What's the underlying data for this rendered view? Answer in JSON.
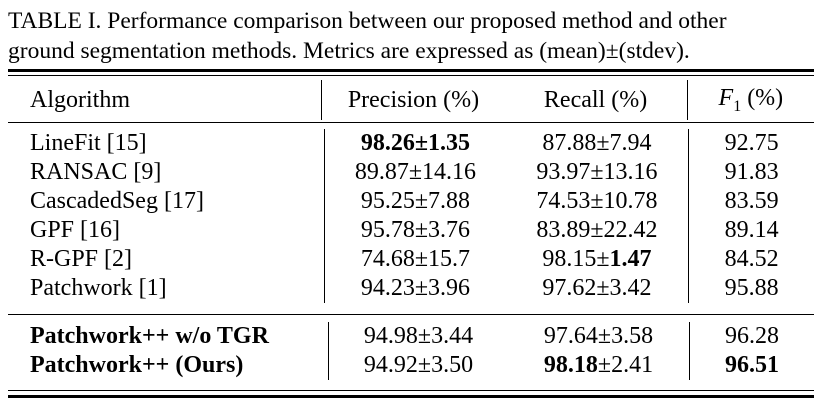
{
  "caption": {
    "line1": "TABLE I. Performance comparison between our proposed method and other",
    "line2": "ground segmentation methods. Metrics are expressed as (mean)±(stdev)."
  },
  "table": {
    "headers": {
      "algorithm": "Algorithm",
      "precision": "Precision (%)",
      "recall": "Recall (%)",
      "f1_symbol": "F",
      "f1_sub": "1",
      "f1_unit": " (%)"
    },
    "group1": [
      {
        "algorithm": "LineFit [15]",
        "precision_mean": "98.26",
        "precision_sd": "±1.35",
        "recall_mean": "87.88",
        "recall_sd": "±7.94",
        "f1": "92.75"
      },
      {
        "algorithm": "RANSAC [9]",
        "precision_mean": "89.87",
        "precision_sd": "±14.16",
        "recall_mean": "93.97",
        "recall_sd": "±13.16",
        "f1": "91.83"
      },
      {
        "algorithm": "CascadedSeg [17]",
        "precision_mean": "95.25",
        "precision_sd": "±7.88",
        "recall_mean": "74.53",
        "recall_sd": "±10.78",
        "f1": "83.59"
      },
      {
        "algorithm": "GPF [16]",
        "precision_mean": "95.78",
        "precision_sd": "±3.76",
        "recall_mean": "83.89",
        "recall_sd": "±22.42",
        "f1": "89.14"
      },
      {
        "algorithm": "R-GPF [2]",
        "precision_mean": "74.68",
        "precision_sd": "±15.7",
        "recall_mean": "98.15",
        "recall_sd_pm": "±",
        "recall_sd_val": "1.47",
        "f1": "84.52"
      },
      {
        "algorithm": "Patchwork [1]",
        "precision_mean": "94.23",
        "precision_sd": "±3.96",
        "recall_mean": "97.62",
        "recall_sd": "±3.42",
        "f1": "95.88"
      }
    ],
    "group2": [
      {
        "algorithm": "Patchwork++ w/o TGR",
        "precision_mean": "94.98",
        "precision_sd": "±3.44",
        "recall_mean": "97.64",
        "recall_sd": "±3.58",
        "f1": "96.28"
      },
      {
        "algorithm": "Patchwork++ (Ours)",
        "precision_mean": "94.92",
        "precision_sd": "±3.50",
        "recall_mean": "98.18",
        "recall_sd": "±2.41",
        "f1": "96.51"
      }
    ]
  }
}
